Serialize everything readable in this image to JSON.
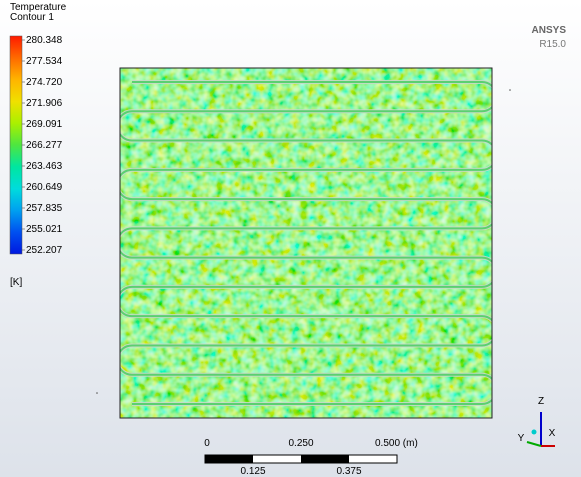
{
  "legend": {
    "title": [
      "Temperature",
      "Contour 1"
    ],
    "labels": [
      "280.348",
      "277.534",
      "274.720",
      "271.906",
      "269.091",
      "266.277",
      "263.463",
      "260.649",
      "257.835",
      "255.021",
      "252.207"
    ],
    "unit": "[K]"
  },
  "logo": {
    "name": "ANSYS",
    "version": "R15.0"
  },
  "scale": {
    "top": [
      "0",
      "0.250",
      "0.500 (m)"
    ],
    "bottom": [
      "0.125",
      "0.375"
    ]
  },
  "axes": {
    "z": "Z",
    "y": "Y",
    "x": "X"
  }
}
